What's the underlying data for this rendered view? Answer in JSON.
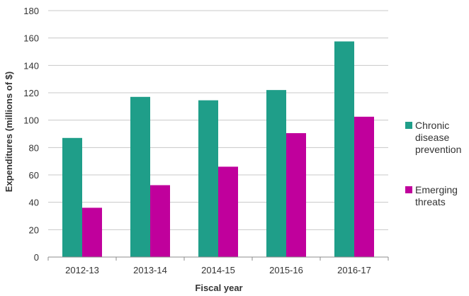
{
  "chart_data": {
    "type": "bar",
    "title": "",
    "xlabel": "Fiscal year",
    "ylabel": "Expenditures (millions of $)",
    "categories": [
      "2012-13",
      "2013-14",
      "2014-15",
      "2015-16",
      "2016-17"
    ],
    "series": [
      {
        "name": "Chronic disease prevention",
        "color": "#1f9e89",
        "values": [
          87,
          117,
          114.5,
          122,
          157.5
        ]
      },
      {
        "name": "Emerging threats",
        "color": "#c0009c",
        "values": [
          36,
          52.5,
          66,
          90.5,
          102.5
        ]
      }
    ],
    "ylim": [
      0,
      180
    ],
    "yticks": [
      0,
      20,
      40,
      60,
      80,
      100,
      120,
      140,
      160,
      180
    ],
    "grid": true,
    "legend": "right"
  }
}
